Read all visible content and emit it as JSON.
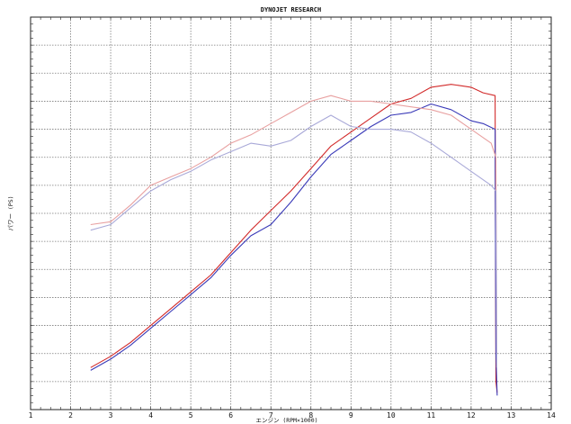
{
  "chart_data": {
    "type": "line",
    "title": "DYNOJET RESEARCH",
    "xlabel": "エンジン (RPM×1000)",
    "ylabel": "パワー (PS)",
    "xlim": [
      1,
      14
    ],
    "ylim": [
      0,
      14
    ],
    "x_ticks": [
      "1",
      "2",
      "3",
      "4",
      "5",
      "6",
      "7",
      "8",
      "9",
      "10",
      "11",
      "12",
      "13",
      "14"
    ],
    "grid": true,
    "colors": {
      "red": "#d22a2a",
      "blue": "#3a3ab8",
      "pink": "#e8a0a0",
      "lightblue": "#a9a9d8",
      "grid": "#7a7a7a"
    },
    "series": [
      {
        "color": "red",
        "points": [
          [
            2.5,
            1.5
          ],
          [
            3,
            1.9
          ],
          [
            3.5,
            2.4
          ],
          [
            4,
            3.0
          ],
          [
            4.5,
            3.6
          ],
          [
            5,
            4.2
          ],
          [
            5.5,
            4.8
          ],
          [
            6,
            5.6
          ],
          [
            6.5,
            6.4
          ],
          [
            7,
            7.1
          ],
          [
            7.5,
            7.8
          ],
          [
            8,
            8.6
          ],
          [
            8.5,
            9.4
          ],
          [
            9,
            9.9
          ],
          [
            9.5,
            10.4
          ],
          [
            10,
            10.9
          ],
          [
            10.5,
            11.1
          ],
          [
            11,
            11.5
          ],
          [
            11.5,
            11.6
          ],
          [
            12,
            11.5
          ],
          [
            12.3,
            11.3
          ],
          [
            12.6,
            11.2
          ],
          [
            12.62,
            1.0
          ],
          [
            12.65,
            0.6
          ]
        ]
      },
      {
        "color": "blue",
        "points": [
          [
            2.5,
            1.4
          ],
          [
            3,
            1.8
          ],
          [
            3.5,
            2.3
          ],
          [
            4,
            2.9
          ],
          [
            4.5,
            3.5
          ],
          [
            5,
            4.1
          ],
          [
            5.5,
            4.7
          ],
          [
            6,
            5.5
          ],
          [
            6.5,
            6.2
          ],
          [
            7,
            6.6
          ],
          [
            7.5,
            7.4
          ],
          [
            8,
            8.3
          ],
          [
            8.5,
            9.1
          ],
          [
            9,
            9.6
          ],
          [
            9.5,
            10.1
          ],
          [
            10,
            10.5
          ],
          [
            10.5,
            10.6
          ],
          [
            11,
            10.9
          ],
          [
            11.5,
            10.7
          ],
          [
            12,
            10.3
          ],
          [
            12.3,
            10.2
          ],
          [
            12.6,
            10.0
          ],
          [
            12.62,
            2.0
          ],
          [
            12.65,
            0.5
          ]
        ]
      },
      {
        "color": "pink",
        "points": [
          [
            2.5,
            6.6
          ],
          [
            3,
            6.7
          ],
          [
            3.5,
            7.3
          ],
          [
            4,
            8.0
          ],
          [
            4.5,
            8.3
          ],
          [
            5,
            8.6
          ],
          [
            5.5,
            9.0
          ],
          [
            6,
            9.5
          ],
          [
            6.5,
            9.8
          ],
          [
            7,
            10.2
          ],
          [
            7.5,
            10.6
          ],
          [
            8,
            11.0
          ],
          [
            8.5,
            11.2
          ],
          [
            9,
            11.0
          ],
          [
            9.5,
            11.0
          ],
          [
            10,
            10.9
          ],
          [
            10.5,
            10.8
          ],
          [
            11,
            10.7
          ],
          [
            11.5,
            10.5
          ],
          [
            12,
            10.0
          ],
          [
            12.5,
            9.5
          ],
          [
            12.62,
            9.0
          ],
          [
            12.64,
            2.0
          ]
        ]
      },
      {
        "color": "lightblue",
        "points": [
          [
            2.5,
            6.4
          ],
          [
            3,
            6.6
          ],
          [
            3.5,
            7.2
          ],
          [
            4,
            7.8
          ],
          [
            4.5,
            8.2
          ],
          [
            5,
            8.5
          ],
          [
            5.5,
            8.9
          ],
          [
            6,
            9.2
          ],
          [
            6.5,
            9.5
          ],
          [
            7,
            9.4
          ],
          [
            7.5,
            9.6
          ],
          [
            8,
            10.1
          ],
          [
            8.5,
            10.5
          ],
          [
            9,
            10.1
          ],
          [
            9.5,
            10.0
          ],
          [
            10,
            10.0
          ],
          [
            10.5,
            9.9
          ],
          [
            11,
            9.5
          ],
          [
            11.5,
            9.0
          ],
          [
            12,
            8.5
          ],
          [
            12.5,
            8.0
          ],
          [
            12.62,
            7.8
          ],
          [
            12.64,
            1.5
          ]
        ]
      }
    ]
  }
}
